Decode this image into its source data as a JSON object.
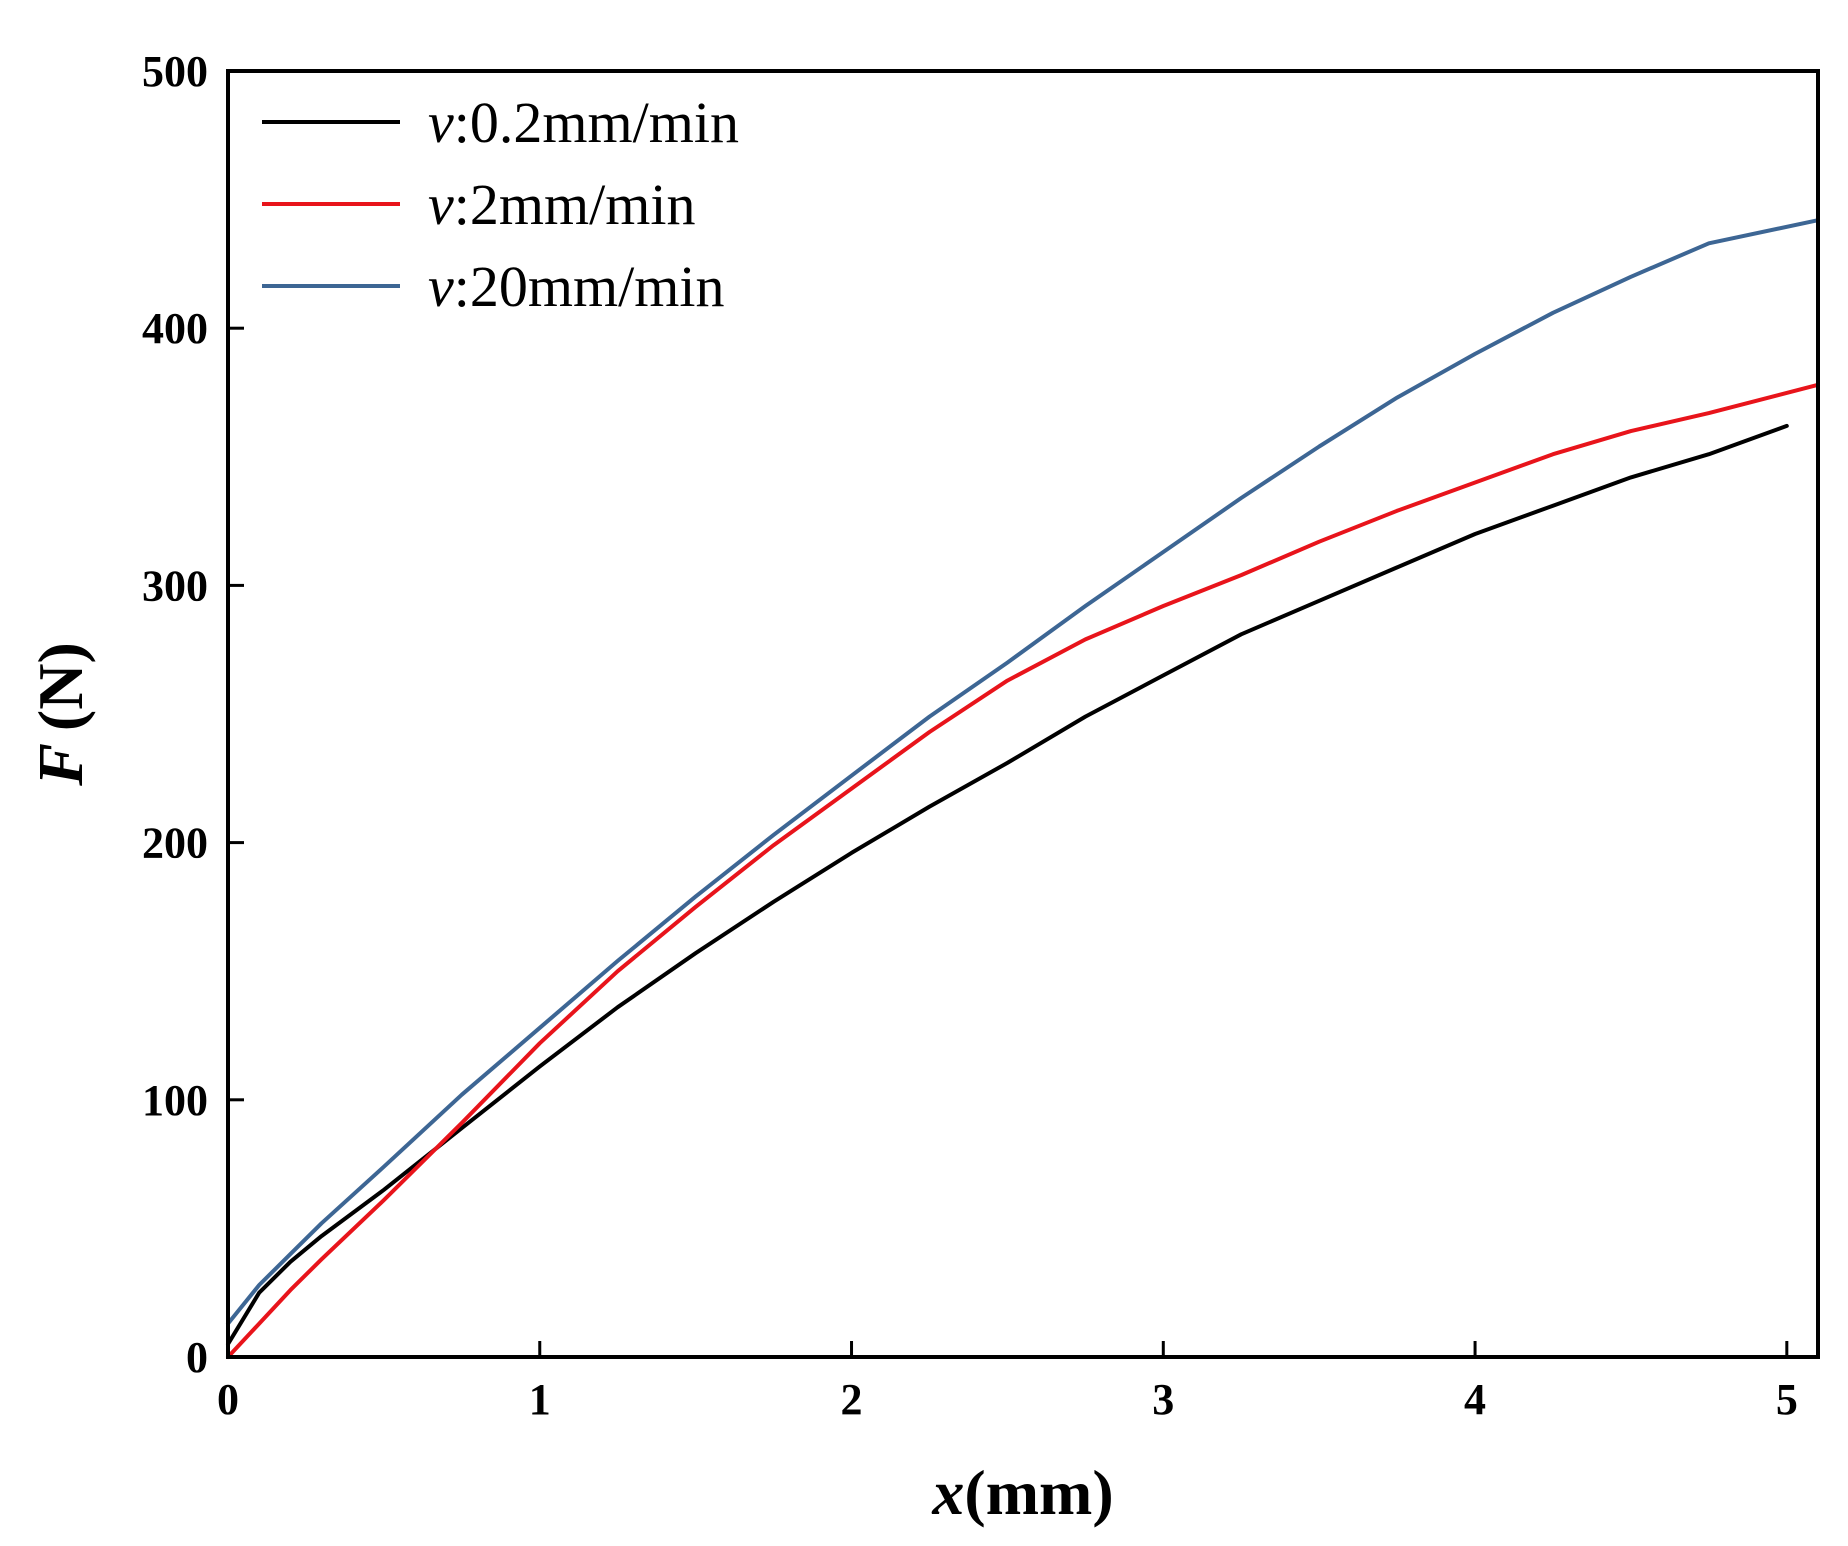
{
  "chart_data": {
    "type": "line",
    "title": "",
    "xlabel": {
      "var": "x",
      "unit": "(mm)"
    },
    "ylabel": {
      "var": "F",
      "unit": "(N)"
    },
    "xlim": [
      0,
      5.1
    ],
    "ylim": [
      0,
      500
    ],
    "xticks": [
      0,
      1,
      2,
      3,
      4,
      5
    ],
    "yticks": [
      0,
      100,
      200,
      300,
      400,
      500
    ],
    "grid": false,
    "legend_position": "top-left",
    "series": [
      {
        "name": "v:0.2mm/min",
        "legend_var": "v",
        "legend_sep": ":",
        "legend_value": "0.2mm/min",
        "color": "#000000",
        "x": [
          0,
          0.1,
          0.2,
          0.3,
          0.5,
          0.75,
          1.0,
          1.25,
          1.5,
          1.75,
          2.0,
          2.25,
          2.5,
          2.75,
          3.0,
          3.25,
          3.5,
          3.75,
          4.0,
          4.25,
          4.5,
          4.75,
          5.0
        ],
        "y": [
          5,
          25,
          37,
          47,
          65,
          89,
          113,
          136,
          157,
          177,
          196,
          214,
          231,
          249,
          265,
          281,
          294,
          307,
          320,
          331,
          342,
          351,
          362
        ]
      },
      {
        "name": "v:2mm/min",
        "legend_var": "v",
        "legend_sep": ":",
        "legend_value": "2mm/min",
        "color": "#e8141b",
        "x": [
          0,
          0.1,
          0.2,
          0.3,
          0.5,
          0.75,
          1.0,
          1.25,
          1.5,
          1.75,
          2.0,
          2.25,
          2.5,
          2.75,
          3.0,
          3.25,
          3.5,
          3.75,
          4.0,
          4.25,
          4.5,
          4.75,
          5.1
        ],
        "y": [
          0,
          13,
          26,
          38,
          61,
          91,
          122,
          150,
          175,
          199,
          221,
          243,
          263,
          279,
          292,
          304,
          317,
          329,
          340,
          351,
          360,
          367,
          378
        ]
      },
      {
        "name": "v:20mm/min",
        "legend_var": "v",
        "legend_sep": ":",
        "legend_value": "20mm/min",
        "color": "#3d6694",
        "x": [
          0,
          0.1,
          0.2,
          0.3,
          0.5,
          0.75,
          1.0,
          1.25,
          1.5,
          1.75,
          2.0,
          2.25,
          2.5,
          2.75,
          3.0,
          3.25,
          3.5,
          3.75,
          4.0,
          4.25,
          4.5,
          4.75,
          5.1
        ],
        "y": [
          13,
          28,
          40,
          52,
          74,
          102,
          128,
          154,
          179,
          203,
          226,
          249,
          270,
          292,
          313,
          334,
          354,
          373,
          390,
          406,
          420,
          433,
          442
        ]
      }
    ]
  }
}
